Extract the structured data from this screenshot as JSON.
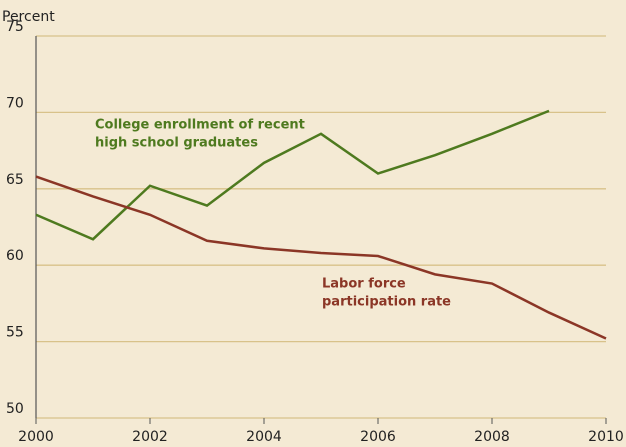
{
  "chart_data": {
    "type": "line",
    "y_axis_label": "Percent",
    "x": [
      2000,
      2001,
      2002,
      2003,
      2004,
      2005,
      2006,
      2007,
      2008,
      2009,
      2010
    ],
    "series": [
      {
        "color": "#4e7a1f",
        "values": [
          63.3,
          61.7,
          65.2,
          63.9,
          66.7,
          68.6,
          66.0,
          67.2,
          68.6,
          70.1,
          null
        ]
      },
      {
        "color": "#8b3626",
        "values": [
          65.8,
          64.5,
          63.3,
          61.6,
          61.1,
          60.8,
          60.6,
          59.4,
          58.8,
          56.9,
          55.2
        ]
      }
    ],
    "annotations": [
      {
        "lines": [
          "College enrollment of recent",
          "high school graduates"
        ],
        "color": "#4e7a1f"
      },
      {
        "lines": [
          "Labor force",
          "participation rate"
        ],
        "color": "#8b3626"
      }
    ],
    "xlim": [
      2000,
      2010
    ],
    "xticks": [
      2000,
      2002,
      2004,
      2006,
      2008,
      2010
    ],
    "ylim": [
      50,
      75
    ],
    "yticks": [
      50,
      55,
      60,
      65,
      70,
      75
    ],
    "grid": true
  }
}
